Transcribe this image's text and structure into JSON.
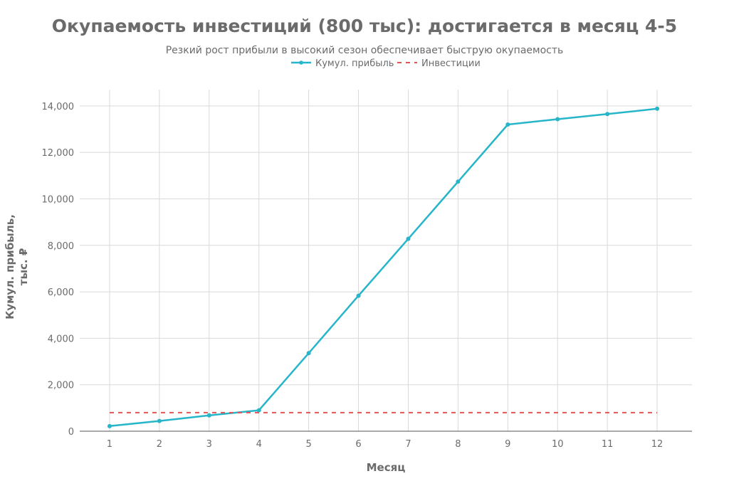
{
  "chart_data": {
    "type": "line",
    "title": "Окупаемость инвестиций (800 тыс): достигается в месяц 4-5",
    "subtitle": "Резкий рост прибыли в высокий сезон обеспечивает быструю окупаемость",
    "xlabel": "Месяц",
    "ylabel_line1": "Кумул. прибыль,",
    "ylabel_line2": "тыс. ₽",
    "x": [
      1,
      2,
      3,
      4,
      5,
      6,
      7,
      8,
      9,
      10,
      11,
      12
    ],
    "x_tick_labels": [
      "1",
      "2",
      "3",
      "4",
      "5",
      "6",
      "7",
      "8",
      "9",
      "10",
      "11",
      "12"
    ],
    "y_ticks": [
      0,
      2000,
      4000,
      6000,
      8000,
      10000,
      12000,
      14000
    ],
    "y_tick_labels": [
      "0",
      "2,000",
      "4,000",
      "6,000",
      "8,000",
      "10,000",
      "12,000",
      "14,000"
    ],
    "ylim": [
      0,
      14700
    ],
    "xlim": [
      0.4,
      12.7
    ],
    "legend_position": "top-center",
    "series": [
      {
        "name": "Кумул. прибыль",
        "style": "solid-markers",
        "color": "#26b5c9",
        "values": [
          220,
          440,
          680,
          900,
          3360,
          5830,
          8280,
          10740,
          13200,
          13430,
          13650,
          13880
        ]
      },
      {
        "name": "Инвестиции",
        "style": "dashed",
        "color": "#e05555",
        "values": [
          800,
          800,
          800,
          800,
          800,
          800,
          800,
          800,
          800,
          800,
          800,
          800
        ]
      }
    ]
  }
}
